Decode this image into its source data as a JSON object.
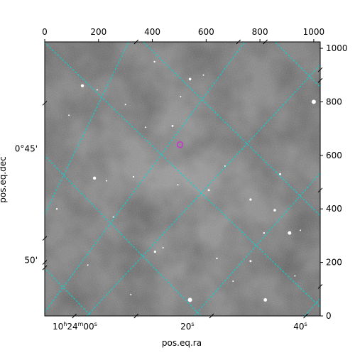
{
  "chart_data": {
    "type": "scatter",
    "title": "",
    "xlabel": "pos.eq.ra",
    "ylabel": "pos.eq.dec",
    "pixel_axes": {
      "x_ticks": [
        "0",
        "200",
        "400",
        "600",
        "800",
        "1000"
      ],
      "x_tick_values": [
        0,
        200,
        400,
        600,
        800,
        1000
      ],
      "xlim": [
        0,
        1024
      ],
      "y_ticks": [
        "0",
        "200",
        "400",
        "600",
        "800",
        "1000"
      ],
      "y_tick_values": [
        0,
        200,
        400,
        600,
        800,
        1000
      ],
      "ylim": [
        0,
        1024
      ]
    },
    "world_axes": {
      "ra_tick_labels": [
        {
          "hms": "10h24m00s",
          "base": "10",
          "parts": [
            [
              "h",
              "24"
            ],
            [
              "m",
              "00"
            ],
            [
              "s",
              ""
            ]
          ],
          "pixel": [
            112,
            0
          ]
        },
        {
          "hms": "20s",
          "base": "20",
          "parts": [
            [
              "s",
              ""
            ]
          ],
          "pixel": [
            530,
            0
          ]
        },
        {
          "hms": "40s",
          "base": "40",
          "parts": [
            [
              "s",
              ""
            ]
          ],
          "pixel": [
            950,
            0
          ]
        }
      ],
      "dec_tick_labels": [
        {
          "text": "0°45'",
          "pixel": [
            0,
            625
          ]
        },
        {
          "text": "50'",
          "pixel": [
            0,
            208
          ]
        }
      ]
    },
    "grid": true,
    "grid_color": "#00d8d8",
    "marker": {
      "type": "circle",
      "pixel": [
        503,
        640
      ],
      "color": "#cc33cc"
    },
    "background": "grayscale sky image with stars"
  }
}
